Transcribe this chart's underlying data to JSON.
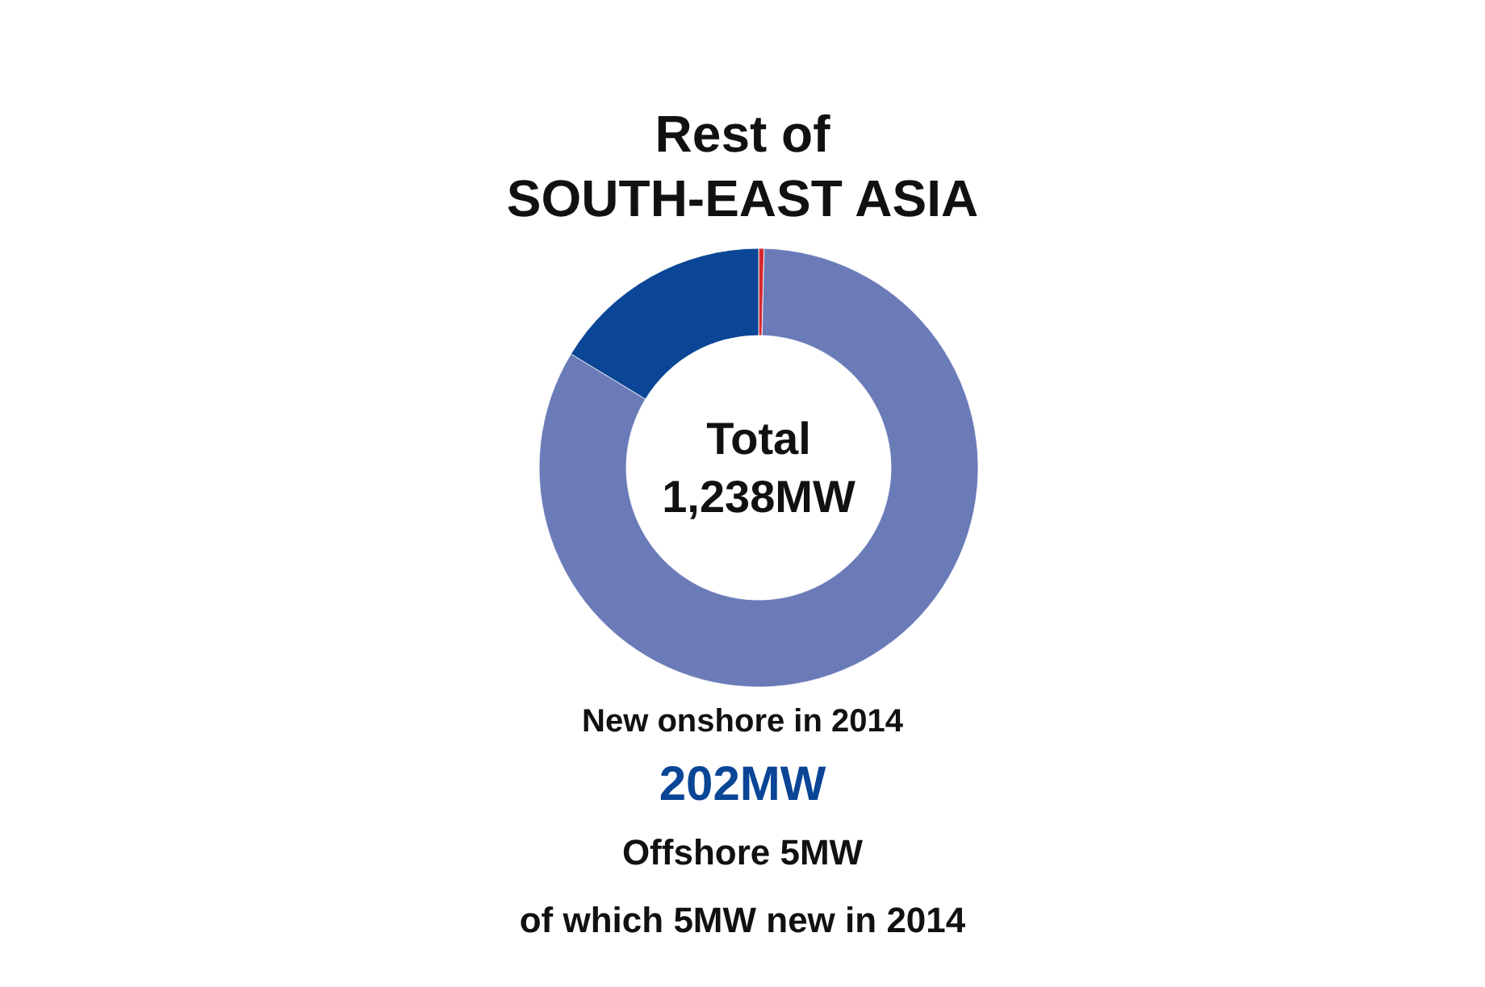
{
  "chart_data": {
    "type": "donut",
    "title": "Rest of\nSOUTH-EAST ASIA",
    "subtitle": "Total\n1,238MW",
    "categories": [
      null,
      null,
      null
    ],
    "values": [
      0.4,
      83.28,
      16.32
    ],
    "colors": [
      "#d7282f",
      "#6b7bb8",
      "#0a4596"
    ],
    "annotations": [
      "New onshore in 2014",
      "202MW",
      "Offshore 5MW",
      "of which 5MW new in 2014"
    ]
  }
}
